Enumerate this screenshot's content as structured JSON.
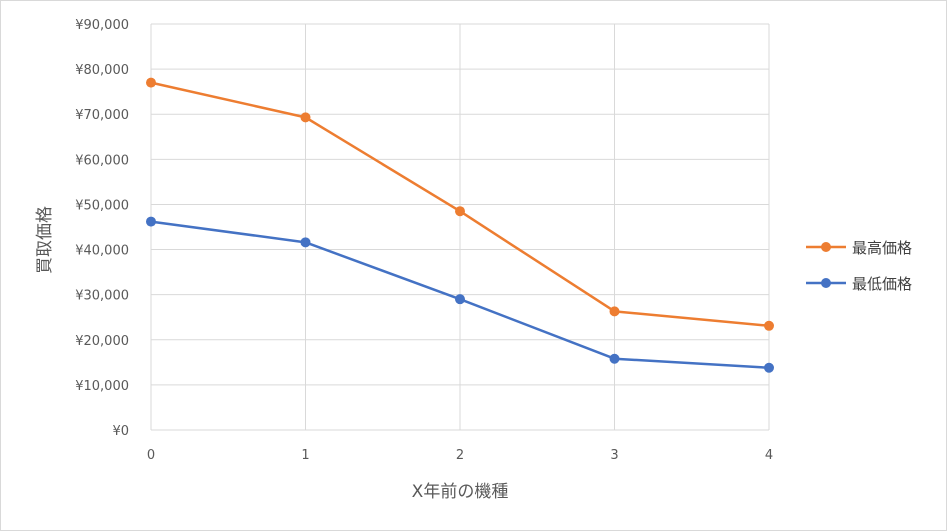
{
  "chart_data": {
    "type": "line",
    "title": "",
    "xlabel": "X年前の機種",
    "ylabel": "買取価格",
    "x": [
      0,
      1,
      2,
      3,
      4
    ],
    "x_tick_labels": [
      "0",
      "1",
      "2",
      "3",
      "4"
    ],
    "ylim": [
      0,
      90000
    ],
    "y_tick_labels": [
      "¥0",
      "¥10,000",
      "¥20,000",
      "¥30,000",
      "¥40,000",
      "¥50,000",
      "¥60,000",
      "¥70,000",
      "¥80,000",
      "¥90,000"
    ],
    "grid": true,
    "legend_position": "right",
    "series": [
      {
        "name": "最高価格",
        "color": "#ed7d31",
        "values": [
          77000,
          69300,
          48500,
          26300,
          23100
        ]
      },
      {
        "name": "最低価格",
        "color": "#4472c4",
        "values": [
          46200,
          41600,
          29000,
          15800,
          13800
        ]
      }
    ]
  }
}
